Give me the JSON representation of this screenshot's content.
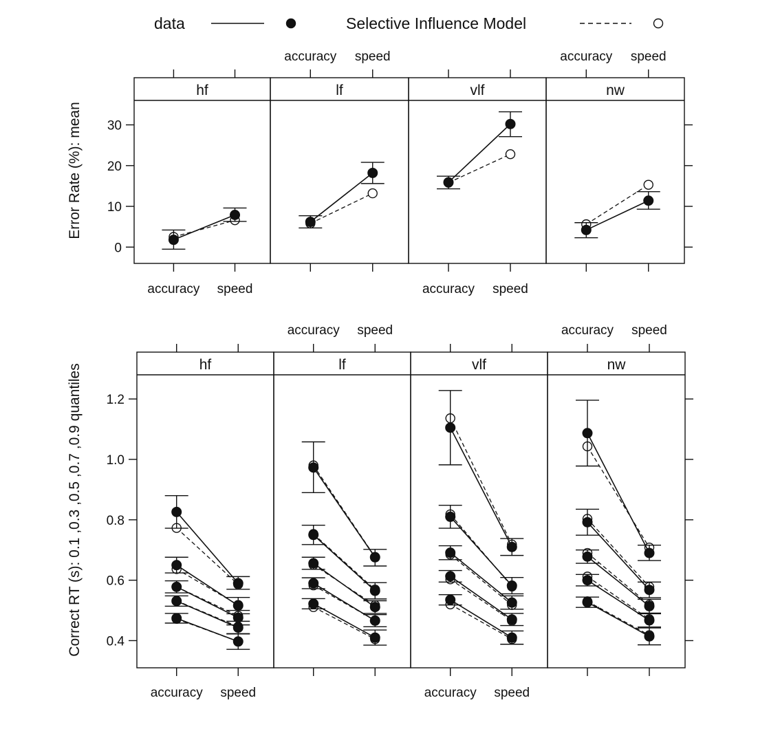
{
  "legend": {
    "data_label": "data",
    "model_label": "Selective Influence Model"
  },
  "chart_data": [
    {
      "type": "line",
      "ylabel": "Error Rate (%): mean",
      "ylim": [
        -4,
        36
      ],
      "yticks": [
        0,
        10,
        20,
        30
      ],
      "x": [
        "accuracy",
        "speed"
      ],
      "panels": [
        {
          "name": "hf",
          "data": [
            {
              "values": [
                1.8,
                7.9
              ],
              "err_low": [
                -0.5,
                6.3
              ],
              "err_high": [
                4.2,
                9.6
              ]
            }
          ],
          "model": [
            {
              "values": [
                2.5,
                6.6
              ]
            }
          ]
        },
        {
          "name": "lf",
          "data": [
            {
              "values": [
                6.2,
                18.2
              ],
              "err_low": [
                4.7,
                15.6
              ],
              "err_high": [
                7.7,
                20.8
              ]
            }
          ],
          "model": [
            {
              "values": [
                5.8,
                13.2
              ]
            }
          ]
        },
        {
          "name": "vlf",
          "data": [
            {
              "values": [
                15.9,
                30.2
              ],
              "err_low": [
                14.3,
                27.1
              ],
              "err_high": [
                17.4,
                33.2
              ]
            }
          ],
          "model": [
            {
              "values": [
                15.8,
                22.8
              ]
            }
          ]
        },
        {
          "name": "nw",
          "data": [
            {
              "values": [
                4.2,
                11.4
              ],
              "err_low": [
                2.3,
                9.3
              ],
              "err_high": [
                6.0,
                13.6
              ]
            }
          ],
          "model": [
            {
              "values": [
                5.6,
                15.3
              ]
            }
          ]
        }
      ]
    },
    {
      "type": "line",
      "ylabel": "Correct RT (s): 0.1 ,0.3 ,0.5 ,0.7 ,0.9 quantiles",
      "ylim": [
        0.31,
        1.28
      ],
      "yticks": [
        "0.4",
        "0.6",
        "0.8",
        "1.0",
        "1.2"
      ],
      "x": [
        "accuracy",
        "speed"
      ],
      "panels": [
        {
          "name": "hf",
          "data": [
            {
              "values": [
                0.474,
                0.397
              ],
              "err_low": [
                0.458,
                0.371
              ],
              "err_high": [
                0.49,
                0.423
              ]
            },
            {
              "values": [
                0.531,
                0.443
              ],
              "err_low": [
                0.514,
                0.422
              ],
              "err_high": [
                0.548,
                0.464
              ]
            },
            {
              "values": [
                0.578,
                0.476
              ],
              "err_low": [
                0.558,
                0.452
              ],
              "err_high": [
                0.598,
                0.5
              ]
            },
            {
              "values": [
                0.65,
                0.516
              ],
              "err_low": [
                0.624,
                0.489
              ],
              "err_high": [
                0.676,
                0.543
              ]
            },
            {
              "values": [
                0.826,
                0.59
              ],
              "err_low": [
                0.772,
                0.57
              ],
              "err_high": [
                0.88,
                0.612
              ]
            }
          ],
          "model": [
            {
              "values": [
                0.472,
                0.397
              ]
            },
            {
              "values": [
                0.532,
                0.446
              ]
            },
            {
              "values": [
                0.578,
                0.482
              ]
            },
            {
              "values": [
                0.637,
                0.518
              ]
            },
            {
              "values": [
                0.773,
                0.586
              ]
            }
          ]
        },
        {
          "name": "lf",
          "data": [
            {
              "values": [
                0.522,
                0.41
              ],
              "err_low": [
                0.505,
                0.385
              ],
              "err_high": [
                0.539,
                0.435
              ]
            },
            {
              "values": [
                0.59,
                0.466
              ],
              "err_low": [
                0.572,
                0.446
              ],
              "err_high": [
                0.608,
                0.486
              ]
            },
            {
              "values": [
                0.656,
                0.511
              ],
              "err_low": [
                0.636,
                0.49
              ],
              "err_high": [
                0.676,
                0.532
              ]
            },
            {
              "values": [
                0.75,
                0.565
              ],
              "err_low": [
                0.718,
                0.538
              ],
              "err_high": [
                0.782,
                0.592
              ]
            },
            {
              "values": [
                0.973,
                0.676
              ],
              "err_low": [
                0.89,
                0.647
              ],
              "err_high": [
                1.058,
                0.702
              ]
            }
          ],
          "model": [
            {
              "values": [
                0.511,
                0.405
              ]
            },
            {
              "values": [
                0.583,
                0.467
              ]
            },
            {
              "values": [
                0.651,
                0.517
              ]
            },
            {
              "values": [
                0.753,
                0.569
              ]
            },
            {
              "values": [
                0.98,
                0.677
              ]
            }
          ]
        },
        {
          "name": "vlf",
          "data": [
            {
              "values": [
                0.535,
                0.41
              ],
              "err_low": [
                0.518,
                0.388
              ],
              "err_high": [
                0.552,
                0.432
              ]
            },
            {
              "values": [
                0.613,
                0.47
              ],
              "err_low": [
                0.594,
                0.45
              ],
              "err_high": [
                0.632,
                0.49
              ]
            },
            {
              "values": [
                0.691,
                0.526
              ],
              "err_low": [
                0.668,
                0.504
              ],
              "err_high": [
                0.714,
                0.548
              ]
            },
            {
              "values": [
                0.81,
                0.582
              ],
              "err_low": [
                0.772,
                0.555
              ],
              "err_high": [
                0.848,
                0.609
              ]
            },
            {
              "values": [
                1.105,
                0.71
              ],
              "err_low": [
                0.982,
                0.682
              ],
              "err_high": [
                1.228,
                0.738
              ]
            }
          ],
          "model": [
            {
              "values": [
                0.52,
                0.405
              ]
            },
            {
              "values": [
                0.603,
                0.466
              ]
            },
            {
              "values": [
                0.685,
                0.518
              ]
            },
            {
              "values": [
                0.818,
                0.579
              ]
            },
            {
              "values": [
                1.136,
                0.718
              ]
            }
          ]
        },
        {
          "name": "nw",
          "data": [
            {
              "values": [
                0.527,
                0.414
              ],
              "err_low": [
                0.51,
                0.386
              ],
              "err_high": [
                0.544,
                0.442
              ]
            },
            {
              "values": [
                0.6,
                0.467
              ],
              "err_low": [
                0.581,
                0.445
              ],
              "err_high": [
                0.619,
                0.489
              ]
            },
            {
              "values": [
                0.678,
                0.514
              ],
              "err_low": [
                0.656,
                0.491
              ],
              "err_high": [
                0.7,
                0.537
              ]
            },
            {
              "values": [
                0.792,
                0.568
              ],
              "err_low": [
                0.749,
                0.542
              ],
              "err_high": [
                0.835,
                0.594
              ]
            },
            {
              "values": [
                1.087,
                0.69
              ],
              "err_low": [
                0.978,
                0.665
              ],
              "err_high": [
                1.196,
                0.716
              ]
            }
          ],
          "model": [
            {
              "values": [
                0.53,
                0.418
              ]
            },
            {
              "values": [
                0.612,
                0.471
              ]
            },
            {
              "values": [
                0.69,
                0.519
              ]
            },
            {
              "values": [
                0.803,
                0.578
              ]
            },
            {
              "values": [
                1.043,
                0.708
              ]
            }
          ]
        }
      ]
    }
  ]
}
